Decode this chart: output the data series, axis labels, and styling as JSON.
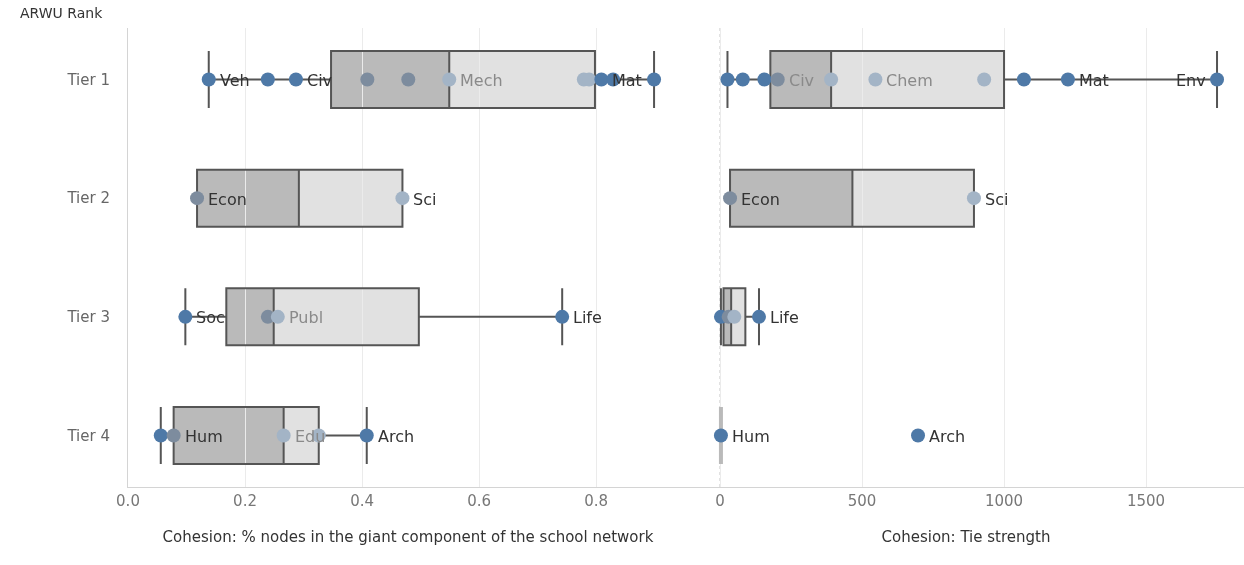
{
  "chart_data": [
    {
      "type": "box",
      "orientation": "horizontal",
      "ylabel": "ARWU Rank",
      "xlabel": "Cohesion: % nodes in the giant component of the school network",
      "categories": [
        "Tier 1",
        "Tier 2",
        "Tier 3",
        "Tier 4"
      ],
      "series": [
        {
          "type": "box",
          "color": "#bababa",
          "boxes": [
            {
              "low": 0.138,
              "q1": 0.347,
              "median": 0.549,
              "q3": 0.798,
              "high": 0.899
            },
            {
              "low": 0.118,
              "q1": 0.118,
              "median": 0.292,
              "q3": 0.469,
              "high": 0.469
            },
            {
              "low": 0.098,
              "q1": 0.168,
              "median": 0.249,
              "q3": 0.497,
              "high": 0.742
            },
            {
              "low": 0.056,
              "q1": 0.078,
              "median": 0.266,
              "q3": 0.326,
              "high": 0.408
            }
          ]
        },
        {
          "type": "scatter",
          "x": [
            "Tier 1",
            "Tier 1",
            "Tier 1",
            "Tier 1",
            "Tier 1",
            "Tier 1",
            "Tier 1",
            "Tier 1",
            "Tier 1",
            "Tier 1",
            "Tier 1",
            "Tier 2",
            "Tier 2",
            "Tier 3",
            "Tier 3",
            "Tier 3",
            "Tier 3",
            "Tier 4",
            "Tier 4",
            "Tier 4",
            "Tier 4",
            "Tier 4"
          ],
          "values": [
            0.138,
            0.239,
            0.287,
            0.409,
            0.479,
            0.549,
            0.779,
            0.788,
            0.809,
            0.829,
            0.899,
            0.118,
            0.469,
            0.098,
            0.239,
            0.256,
            0.742,
            0.056,
            0.078,
            0.266,
            0.326,
            0.408
          ],
          "colors": [
            "#4e79a7",
            "#4e79a7",
            "#4e79a7",
            "#7d8c9e",
            "#7d8c9e",
            "#a3b4c6",
            "#a3b4c6",
            "#a3b4c6",
            "#4e79a7",
            "#4e79a7",
            "#4e79a7",
            "#7d8c9e",
            "#a3b4c6",
            "#4e79a7",
            "#7d8c9e",
            "#a3b4c6",
            "#4e79a7",
            "#4e79a7",
            "#7d8c9e",
            "#a3b4c6",
            "#a3b4c6",
            "#4e79a7"
          ]
        }
      ],
      "annotations": [
        {
          "text": "Veh",
          "x": 0.138,
          "y": "Tier 1"
        },
        {
          "text": "Civ",
          "x": 0.287,
          "y": "Tier 1"
        },
        {
          "text": "Mech",
          "x": 0.549,
          "y": "Tier 1"
        },
        {
          "text": "Mat",
          "x": 0.809,
          "y": "Tier 1"
        },
        {
          "text": "Econ",
          "x": 0.118,
          "y": "Tier 2"
        },
        {
          "text": "Sci",
          "x": 0.469,
          "y": "Tier 2"
        },
        {
          "text": "Soc",
          "x": 0.098,
          "y": "Tier 3"
        },
        {
          "text": "Publ",
          "x": 0.256,
          "y": "Tier 3"
        },
        {
          "text": "Life",
          "x": 0.742,
          "y": "Tier 3"
        },
        {
          "text": "Hum",
          "x": 0.078,
          "y": "Tier 4"
        },
        {
          "text": "Edu",
          "x": 0.266,
          "y": "Tier 4"
        },
        {
          "text": "Arch",
          "x": 0.408,
          "y": "Tier 4"
        }
      ],
      "marker": "circle",
      "xlim": [
        0,
        0.957
      ],
      "xticks": [
        {
          "value": 0,
          "label": "0.0"
        },
        0.2,
        0.4,
        0.6,
        0.8
      ],
      "grid": "x"
    },
    {
      "type": "box",
      "orientation": "horizontal",
      "xlabel": "Cohesion: Tie strength",
      "categories": [
        "Tier 1",
        "Tier 2",
        "Tier 3",
        "Tier 4"
      ],
      "series": [
        {
          "type": "box",
          "color": "#bababa",
          "boxes": [
            {
              "low": 26,
              "q1": 177,
              "median": 391,
              "q3": 1000,
              "high": 1750
            },
            {
              "low": 35,
              "q1": 35,
              "median": 466,
              "q3": 894,
              "high": 894
            },
            {
              "low": 3,
              "q1": 12,
              "median": 39,
              "q3": 89,
              "high": 137
            },
            {
              "low": 3,
              "q1": 3,
              "median": 3,
              "q3": 3,
              "high": 3
            }
          ]
        },
        {
          "type": "scatter",
          "x": [
            "Tier 1",
            "Tier 1",
            "Tier 1",
            "Tier 1",
            "Tier 1",
            "Tier 1",
            "Tier 1",
            "Tier 1",
            "Tier 1",
            "Tier 1",
            "Tier 2",
            "Tier 2",
            "Tier 3",
            "Tier 3",
            "Tier 3",
            "Tier 3",
            "Tier 4",
            "Tier 4"
          ],
          "values": [
            26,
            80,
            156,
            203,
            391,
            547,
            930,
            1070,
            1225,
            1750,
            35,
            894,
            3,
            30,
            50,
            137,
            3,
            697
          ],
          "colors": [
            "#4e79a7",
            "#4e79a7",
            "#4e79a7",
            "#7d8c9e",
            "#a3b4c6",
            "#a3b4c6",
            "#a3b4c6",
            "#4e79a7",
            "#4e79a7",
            "#4e79a7",
            "#7d8c9e",
            "#a3b4c6",
            "#4e79a7",
            "#7d8c9e",
            "#a3b4c6",
            "#4e79a7",
            "#4e79a7",
            "#4e79a7"
          ]
        }
      ],
      "annotations": [
        {
          "text": "Civ",
          "x": 203,
          "y": "Tier 1"
        },
        {
          "text": "Chem",
          "x": 547,
          "y": "Tier 1"
        },
        {
          "text": "Mat",
          "x": 1225,
          "y": "Tier 1"
        },
        {
          "text": "Env",
          "x": 1750,
          "y": "Tier 1"
        },
        {
          "text": "Econ",
          "x": 35,
          "y": "Tier 2"
        },
        {
          "text": "Sci",
          "x": 894,
          "y": "Tier 2"
        },
        {
          "text": "Life",
          "x": 137,
          "y": "Tier 3"
        },
        {
          "text": "Hum",
          "x": 3,
          "y": "Tier 4"
        },
        {
          "text": "Arch",
          "x": 697,
          "y": "Tier 4"
        }
      ],
      "marker": "circle",
      "xlim": [
        -113,
        1845
      ],
      "xticks": [
        0,
        500,
        1000,
        1500
      ],
      "grid": "x",
      "tick_labels": "x",
      "ref_lines": [
        {
          "axis": "x",
          "value": 0,
          "line_style": "dotted",
          "color": "#bbbbbb"
        }
      ]
    }
  ]
}
